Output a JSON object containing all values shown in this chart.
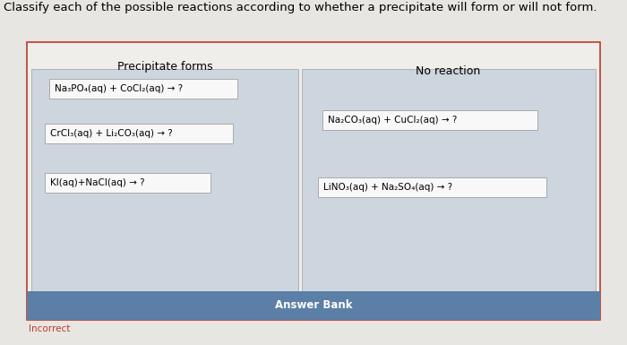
{
  "title": "Classify each of the possible reactions according to whether a precipitate will form or will not form.",
  "title_fontsize": 9.5,
  "left_header": "Precipitate forms",
  "right_header": "No reaction",
  "left_reactions": [
    "Na₃PO₄(aq) + CoCl₂(aq) → ?",
    "CrCl₃(aq) + Li₂CO₃(aq) → ?",
    "KI(aq)+NaCl(aq) → ?"
  ],
  "right_reactions": [
    "Na₂CO₃(aq) + CuCl₂(aq) → ?",
    "LiNO₃(aq) + Na₂SO₄(aq) → ?"
  ],
  "answer_bank_text": "Answer Bank",
  "answer_bank_bg": "#5b7fa6",
  "outer_border_color": "#c0392b",
  "panel_bg": "#cdd5de",
  "outer_bg": "#f0eeeb",
  "reaction_box_bg": "#f8f8f8",
  "reaction_box_border": "#aaaaaa",
  "page_bg": "#e8e6e2",
  "incorrect_text": "Incorrect",
  "incorrect_color": "#c0392b"
}
